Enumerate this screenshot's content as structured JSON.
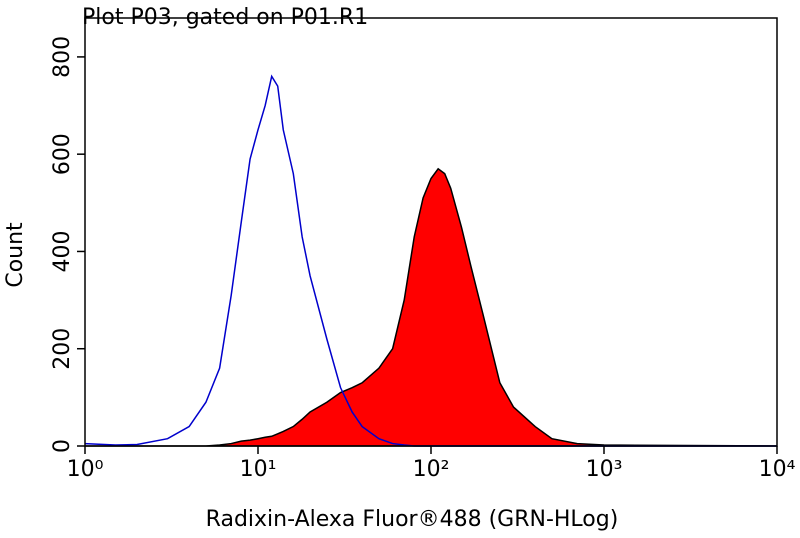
{
  "chart_data": {
    "type": "histogram-line",
    "title": "Plot P03, gated on P01.R1",
    "x_label": "Radixin-Alexa Fluor®488 (GRN-HLog)",
    "y_label": "Count",
    "x_log": true,
    "xlim": [
      1,
      10000
    ],
    "xticks": [
      {
        "value": 1,
        "label": "10⁰"
      },
      {
        "value": 10,
        "label": "10¹"
      },
      {
        "value": 100,
        "label": "10²"
      },
      {
        "value": 1000,
        "label": "10³"
      },
      {
        "value": 10000,
        "label": "10⁴"
      }
    ],
    "ylim": [
      0,
      880
    ],
    "yticks": [
      0,
      200,
      400,
      600,
      800
    ],
    "x": [
      1,
      1.5,
      2,
      3,
      4,
      5,
      6,
      7,
      8,
      9,
      10,
      11,
      12,
      13,
      14,
      16,
      18,
      20,
      25,
      30,
      35,
      40,
      50,
      60,
      70,
      80,
      90,
      100,
      110,
      120,
      130,
      150,
      170,
      200,
      250,
      300,
      400,
      500,
      700,
      1000,
      3000,
      10000
    ],
    "series": [
      {
        "color": "#ff0000",
        "edge_color": "#000000",
        "filled": true,
        "values": [
          0,
          0,
          0,
          0,
          0,
          0,
          2,
          5,
          10,
          12,
          15,
          18,
          20,
          25,
          30,
          40,
          55,
          70,
          90,
          110,
          120,
          130,
          160,
          200,
          300,
          430,
          510,
          550,
          570,
          560,
          530,
          450,
          370,
          270,
          130,
          80,
          40,
          15,
          5,
          2,
          1,
          0
        ]
      },
      {
        "color": "#0000cc",
        "filled": false,
        "values": [
          5,
          2,
          3,
          15,
          40,
          90,
          160,
          310,
          460,
          590,
          650,
          700,
          760,
          740,
          650,
          560,
          430,
          350,
          220,
          120,
          70,
          40,
          15,
          5,
          2,
          0,
          0,
          0,
          0,
          0,
          0,
          0,
          0,
          0,
          0,
          0,
          0,
          0,
          0,
          0,
          0,
          0
        ]
      }
    ]
  }
}
